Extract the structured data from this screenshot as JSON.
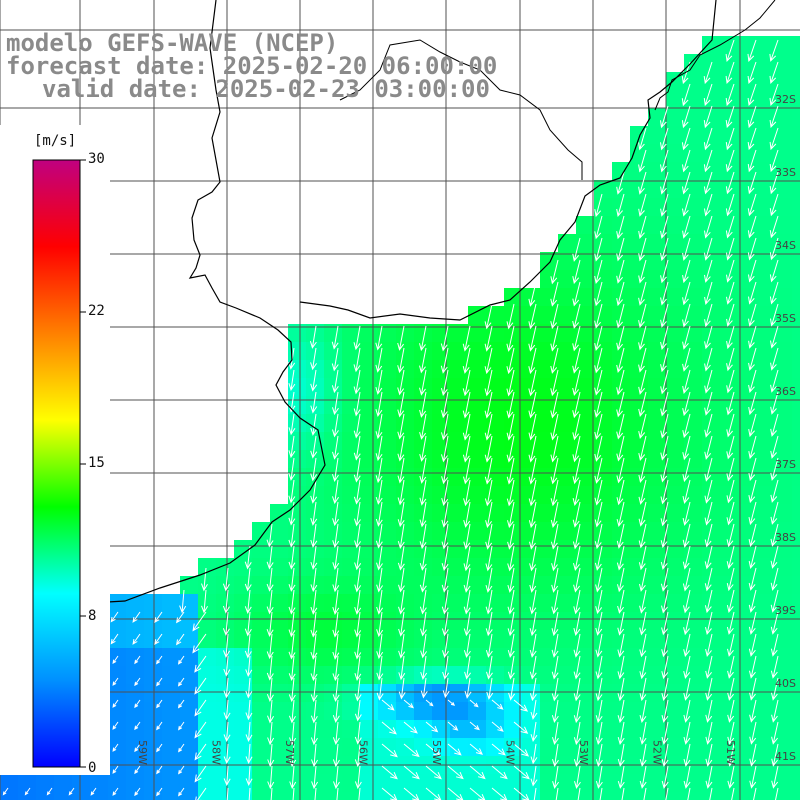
{
  "title": {
    "model": "modelo GEFS-WAVE (NCEP)",
    "forecast": "forecast date: 2025-02-20 06:00:00",
    "valid": "valid date: 2025-02-23 03:00:00"
  },
  "colorbar": {
    "unit": "[m/s]",
    "min": 0,
    "max": 30,
    "ticks": [
      "30",
      "22",
      "15",
      "8",
      "0"
    ],
    "colors": [
      "#0000ff",
      "#0090ff",
      "#00ffff",
      "#00ff00",
      "#ffff00",
      "#ff8000",
      "#ff0000",
      "#c00080"
    ]
  },
  "lat_labels": [
    "32S",
    "33S",
    "34S",
    "35S",
    "36S",
    "37S",
    "38S",
    "39S",
    "40S",
    "41S"
  ],
  "lon_labels": [
    "61W",
    "60W",
    "59W",
    "58W",
    "57W",
    "56W",
    "55W",
    "54W",
    "53W",
    "52W",
    "51W"
  ],
  "wind_field": {
    "variable": "wind speed",
    "unit": "m/s",
    "range_displayed": [
      4,
      13
    ],
    "prevailing_direction": "south-southwest"
  },
  "colors": {
    "land": "#ffffff",
    "grid": "#505050",
    "coastline": "#000000",
    "arrows": "#ffffff",
    "title_text": "#8a8a8a"
  }
}
